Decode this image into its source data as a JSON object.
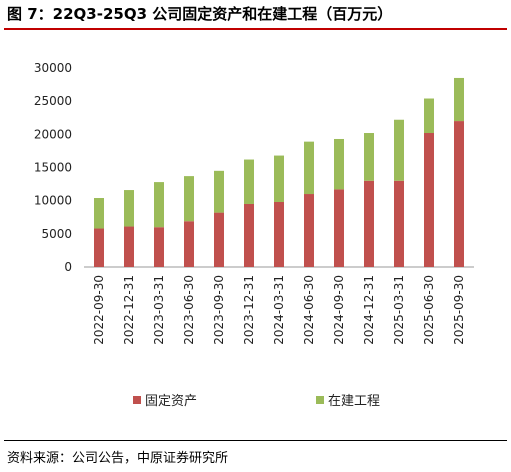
{
  "header": {
    "title": "图 7：22Q3-25Q3  公司固定资产和在建工程（百万元）"
  },
  "footer": {
    "source": "资料来源：公司公告，中原证券研究所"
  },
  "colors": {
    "fixed_assets": "#c0504d",
    "construction": "#9bbb59",
    "title_rule": "#c00000"
  },
  "chart_data": {
    "type": "bar",
    "stacked": true,
    "title": "",
    "xlabel": "",
    "ylabel": "",
    "ylim": [
      0,
      30000
    ],
    "yticks": [
      0,
      5000,
      10000,
      15000,
      20000,
      25000,
      30000
    ],
    "grid": false,
    "legend_position": "bottom",
    "categories": [
      "2022-09-30",
      "2022-12-31",
      "2023-03-31",
      "2023-06-30",
      "2023-09-30",
      "2023-12-31",
      "2024-03-31",
      "2024-06-30",
      "2024-09-30",
      "2024-12-31",
      "2025-03-31",
      "2025-06-30",
      "2025-09-30"
    ],
    "series": [
      {
        "name": "固定资产",
        "color": "#c0504d",
        "values": [
          5800,
          6100,
          6000,
          6900,
          8200,
          9500,
          9800,
          11000,
          11700,
          13000,
          13000,
          20200,
          22000
        ]
      },
      {
        "name": "在建工程",
        "color": "#9bbb59",
        "values": [
          4600,
          5500,
          6800,
          6800,
          6300,
          6700,
          7000,
          7900,
          7600,
          7200,
          9200,
          5200,
          6500
        ]
      }
    ]
  }
}
